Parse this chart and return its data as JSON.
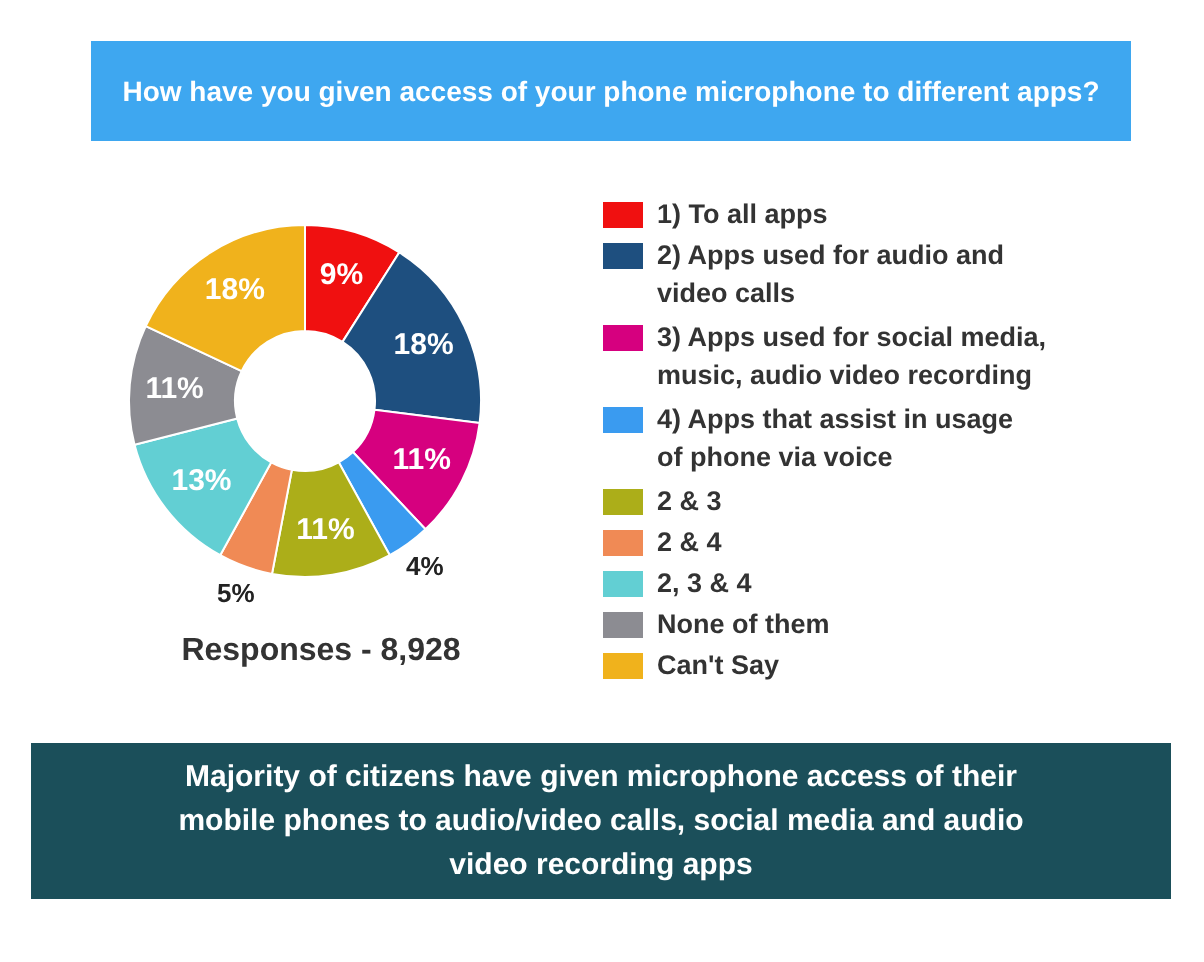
{
  "chart_data": {
    "type": "donut",
    "title": "How have you given access of your phone microphone to different apps?",
    "categories": [
      "1) To all apps",
      "2) Apps used for audio and video calls",
      "3) Apps used for social media, music, audio video recording",
      "4) Apps that assist in usage of phone via voice",
      "2 & 3",
      "2 & 4",
      "2, 3 & 4",
      "None of them",
      "Can't Say"
    ],
    "values": [
      9,
      18,
      11,
      4,
      11,
      5,
      13,
      11,
      18
    ],
    "value_labels": [
      "9%",
      "18%",
      "11%",
      "4%",
      "11%",
      "5%",
      "13%",
      "11%",
      "18%"
    ],
    "colors": [
      "#f01010",
      "#1e4f7f",
      "#d6007f",
      "#3a9bf0",
      "#acae19",
      "#f08a55",
      "#62cfd3",
      "#8c8c92",
      "#f0b21c"
    ],
    "legend": "right",
    "annotations": [
      "Responses - 8,928",
      "Majority of citizens have given microphone access of their mobile phones to audio/video calls, social media and audio video recording apps"
    ]
  }
}
